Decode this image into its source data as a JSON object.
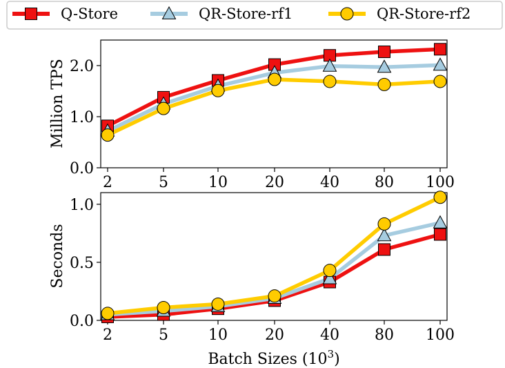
{
  "chart_data": {
    "type": "line",
    "legend": {
      "placement": "top",
      "entries": [
        "Q-Store",
        "QR-Store-rf1",
        "QR-Store-rf2"
      ]
    },
    "categories": [
      "2",
      "5",
      "10",
      "20",
      "40",
      "80",
      "100"
    ],
    "xlabel_main": "Batch Sizes (10",
    "xlabel_sup": "3",
    "xlabel_close": ")",
    "series_style": [
      {
        "color": "#ee1111",
        "marker": "square"
      },
      {
        "color": "#a6cce0",
        "marker": "triangle"
      },
      {
        "color": "#ffcc00",
        "marker": "circle"
      }
    ],
    "panels": [
      {
        "ylabel": "Million TPS",
        "ylim": [
          0,
          2.5
        ],
        "yticks": [
          0.0,
          1.0,
          2.0
        ],
        "yticklabels": [
          "0.0",
          "1.0",
          "2.0"
        ],
        "series": [
          {
            "name": "Q-Store",
            "values": [
              0.82,
              1.38,
              1.71,
              2.02,
              2.2,
              2.27,
              2.32
            ]
          },
          {
            "name": "QR-Store-rf1",
            "values": [
              0.72,
              1.25,
              1.6,
              1.86,
              1.99,
              1.97,
              2.01
            ]
          },
          {
            "name": "QR-Store-rf2",
            "values": [
              0.64,
              1.16,
              1.51,
              1.73,
              1.69,
              1.63,
              1.69
            ]
          }
        ]
      },
      {
        "ylabel": "Seconds",
        "ylim": [
          0,
          1.1
        ],
        "yticks": [
          0.0,
          0.5,
          1.0
        ],
        "yticklabels": [
          "0.0",
          "0.5",
          "1.0"
        ],
        "series": [
          {
            "name": "Q-Store",
            "values": [
              0.03,
              0.05,
              0.1,
              0.17,
              0.33,
              0.61,
              0.74
            ]
          },
          {
            "name": "QR-Store-rf1",
            "values": [
              0.05,
              0.08,
              0.12,
              0.19,
              0.36,
              0.73,
              0.84
            ]
          },
          {
            "name": "QR-Store-rf2",
            "values": [
              0.06,
              0.11,
              0.14,
              0.21,
              0.43,
              0.83,
              1.06
            ]
          }
        ]
      }
    ]
  }
}
